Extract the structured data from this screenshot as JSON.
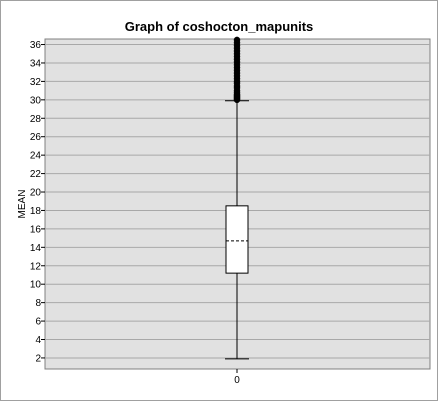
{
  "chart_data": {
    "type": "box",
    "title": "Graph of coshocton_mapunits",
    "xlabel": "",
    "ylabel": "MEAN",
    "categories": [
      "0"
    ],
    "ylim": [
      0.8,
      36.6
    ],
    "yticks": [
      2,
      4,
      6,
      8,
      10,
      12,
      14,
      16,
      18,
      20,
      22,
      24,
      26,
      28,
      30,
      32,
      34,
      36
    ],
    "grid": true,
    "box": {
      "whisker_low": 1.9,
      "q1": 11.2,
      "median": 14.7,
      "q3": 18.5,
      "whisker_high": 29.9
    },
    "outliers": [
      30.0,
      30.1,
      30.2,
      30.3,
      30.4,
      30.5,
      30.6,
      30.8,
      31.0,
      31.3,
      31.5,
      31.8,
      32.0,
      32.3,
      32.6,
      32.9,
      33.2,
      33.5,
      33.8,
      34.1,
      34.4,
      34.7,
      35.0,
      35.3,
      35.6,
      35.9,
      36.2,
      36.5
    ],
    "colors": {
      "plot_background": "#e1e1e1",
      "gridline": "#a8a8a8",
      "box_fill": "#ffffff",
      "stroke": "#000000"
    }
  }
}
